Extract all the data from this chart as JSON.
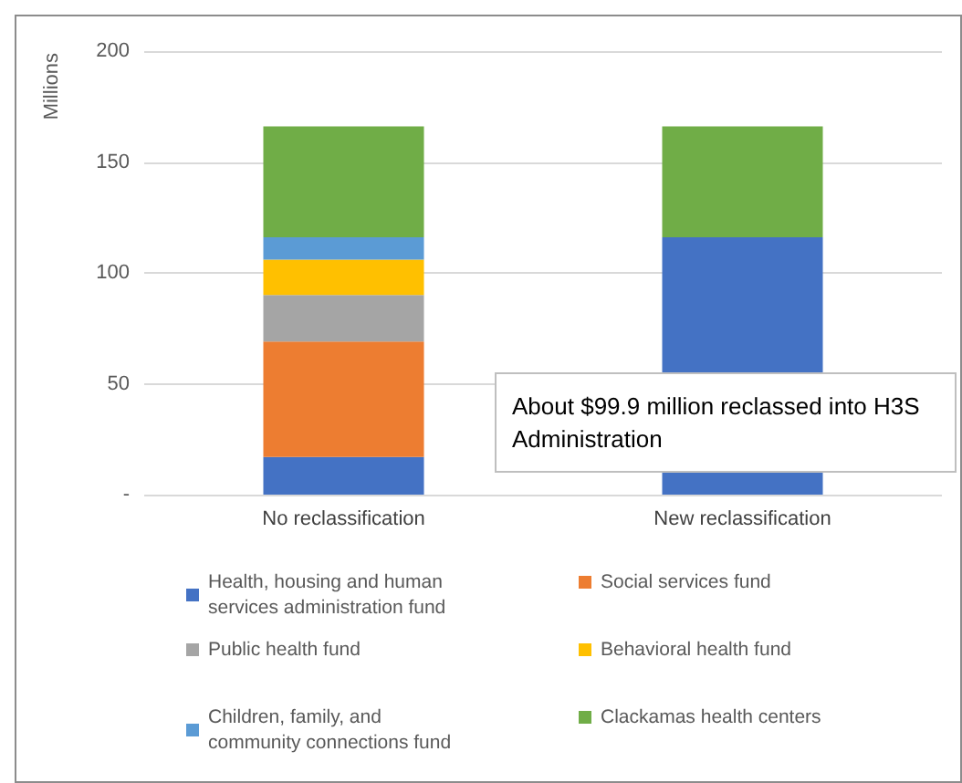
{
  "chart_data": {
    "type": "bar",
    "stacked": true,
    "ylabel": "Millions",
    "categories": [
      "No reclassification",
      "New reclassification"
    ],
    "series": [
      {
        "name": "Health, housing and human services administration fund",
        "color": "#4472c4",
        "values": [
          17,
          116
        ]
      },
      {
        "name": "Social services fund",
        "color": "#ed7d31",
        "values": [
          52,
          null
        ]
      },
      {
        "name": "Public health fund",
        "color": "#a5a5a5",
        "values": [
          21,
          null
        ]
      },
      {
        "name": "Behavioral health fund",
        "color": "#ffc000",
        "values": [
          16,
          null
        ]
      },
      {
        "name": "Children, family, and community connections fund",
        "color": "#5b9bd5",
        "values": [
          10,
          null
        ]
      },
      {
        "name": "Clackamas health centers",
        "color": "#70ad47",
        "values": [
          50,
          50
        ]
      }
    ],
    "ylim": [
      0,
      200
    ],
    "yticks": [
      {
        "value": 0,
        "label": "-"
      },
      50,
      100,
      150,
      200
    ],
    "grid": "y",
    "legend": "bottom",
    "annotations": [
      "About $99.9 million reclassed into H3S Administration"
    ]
  }
}
